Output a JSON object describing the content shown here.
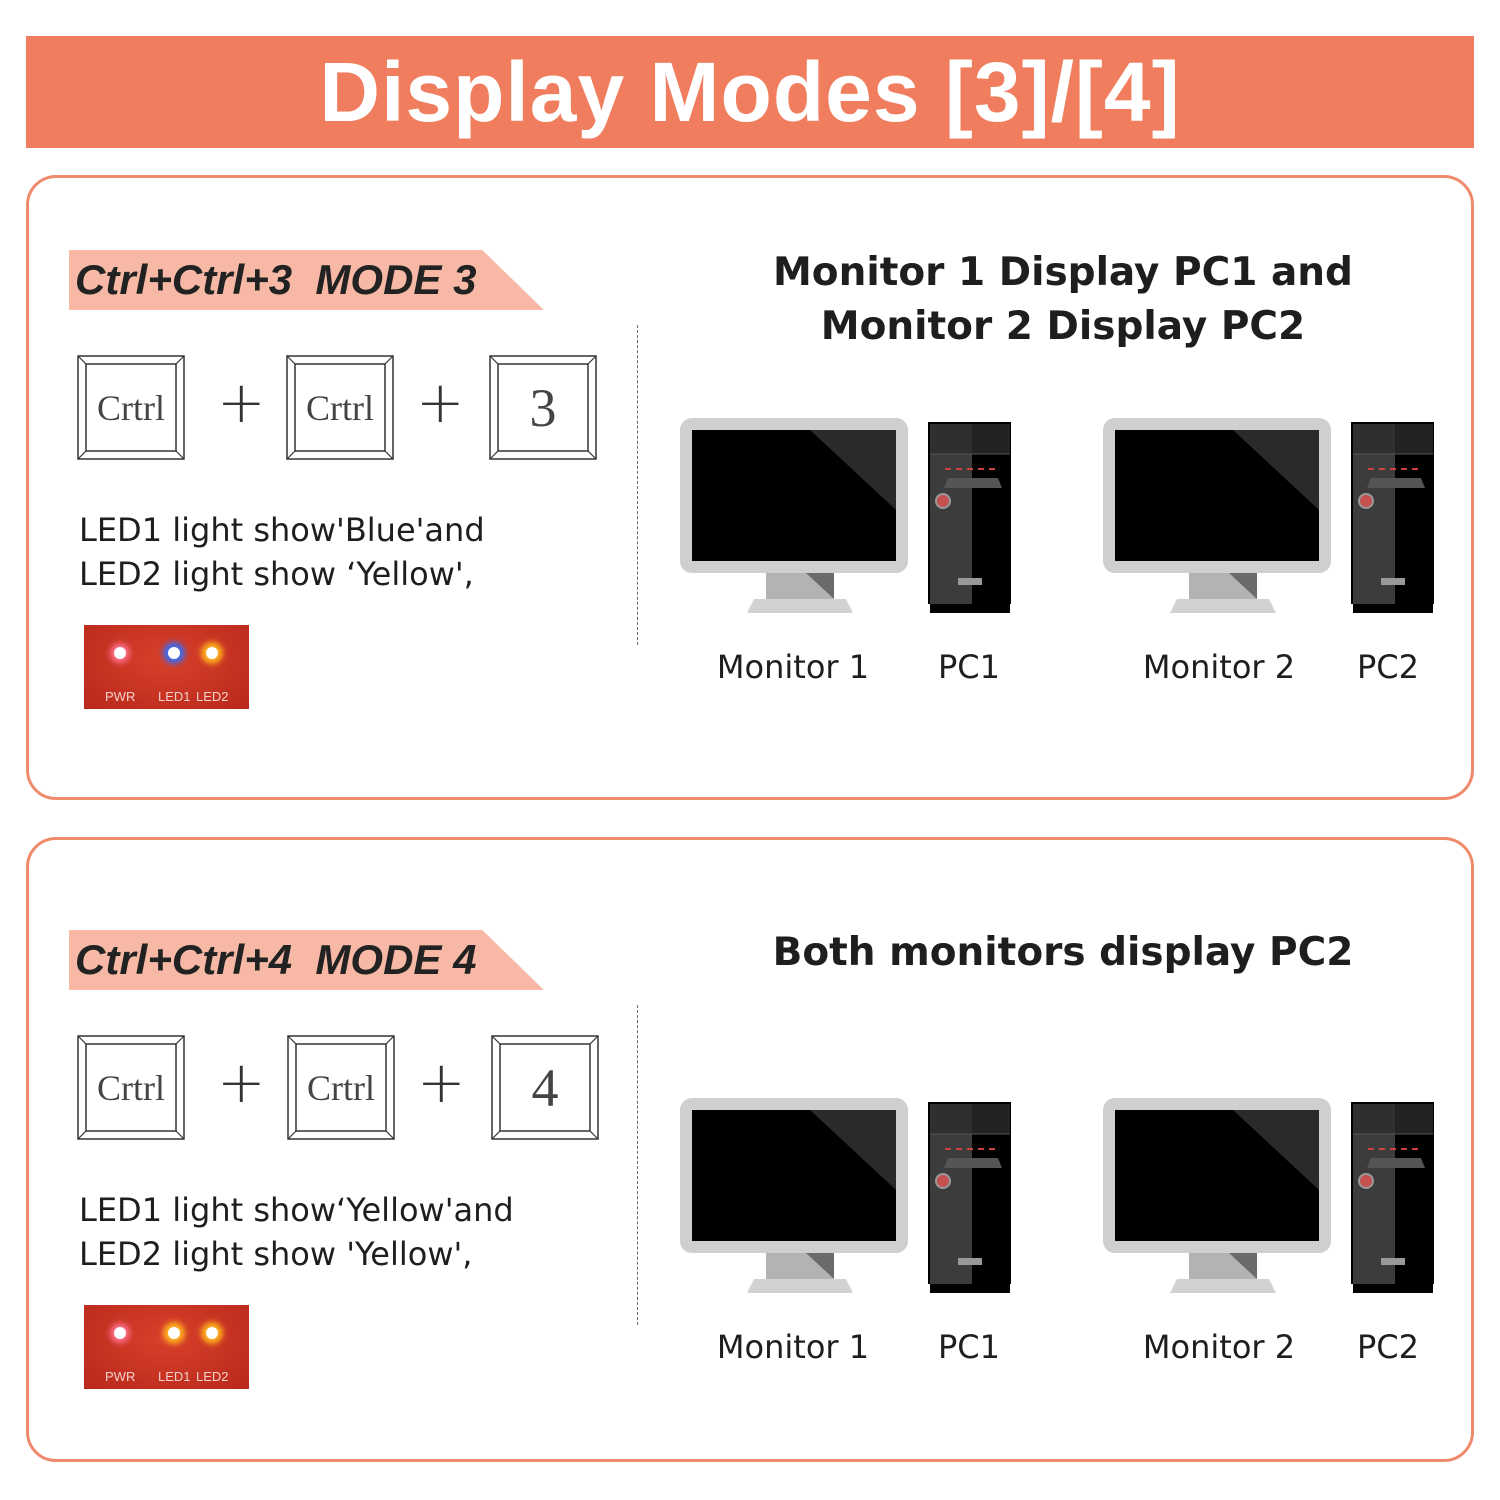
{
  "header": {
    "title": "Display Modes [3]/[4]"
  },
  "colors": {
    "accent": "#f07e5e",
    "border": "#ef8a6c",
    "banner": "#f7b9a6",
    "led_blue": "#3a6cf0",
    "led_yellow": "#ffb020",
    "led_pwr": "#ff6f8a"
  },
  "modes": [
    {
      "banner": "Ctrl+Ctrl+3  MODE 3",
      "keys": [
        "Crtrl",
        "Crtrl",
        "3"
      ],
      "plus": "+",
      "led_text_1": "LED1 light show'Blue'and",
      "led_text_2": "LED2 light show ‘Yellow',",
      "led_labels": {
        "pwr": "PWR",
        "led1": "LED1",
        "led2": "LED2"
      },
      "led_colors": {
        "led1": "blue",
        "led2": "yellow"
      },
      "title": "Monitor 1 Display PC1 and\nMonitor 2 Display PC2",
      "devices": [
        "Monitor 1",
        "PC1",
        "Monitor 2",
        "PC2"
      ]
    },
    {
      "banner": "Ctrl+Ctrl+4  MODE 4",
      "keys": [
        "Crtrl",
        "Crtrl",
        "4"
      ],
      "plus": "+",
      "led_text_1": "LED1 light show‘Yellow'and",
      "led_text_2": "LED2 light show 'Yellow',",
      "led_labels": {
        "pwr": "PWR",
        "led1": "LED1",
        "led2": "LED2"
      },
      "led_colors": {
        "led1": "yellow",
        "led2": "yellow"
      },
      "title": "Both monitors display PC2",
      "devices": [
        "Monitor 1",
        "PC1",
        "Monitor 2",
        "PC2"
      ]
    }
  ]
}
